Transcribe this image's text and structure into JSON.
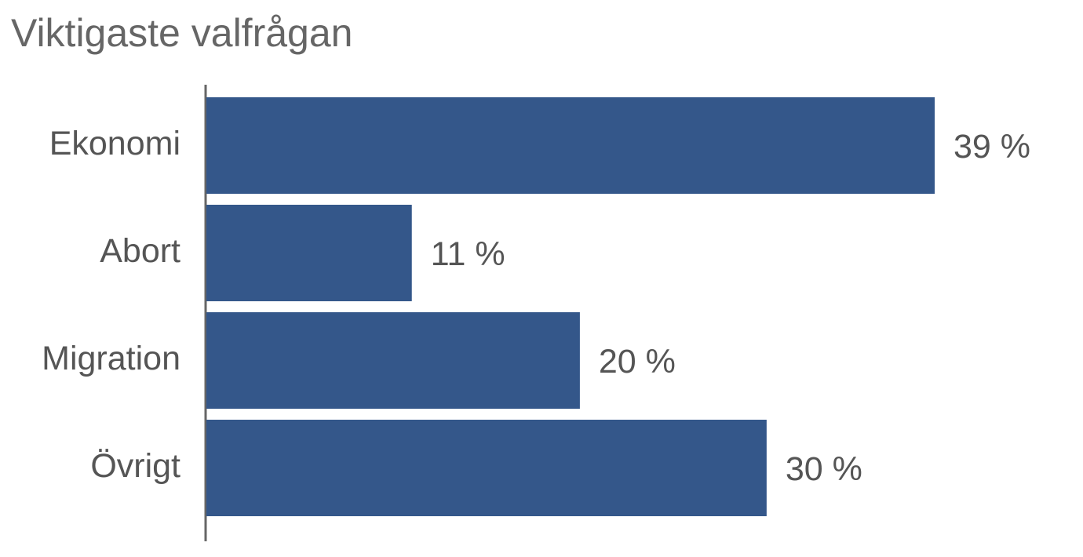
{
  "chart_data": {
    "type": "bar",
    "orientation": "horizontal",
    "title": "Viktigaste valfrågan",
    "categories": [
      "Ekonomi",
      "Abort",
      "Migration",
      "Övrigt"
    ],
    "values": [
      39,
      11,
      20,
      30
    ],
    "value_labels": [
      "39 %",
      "11 %",
      "20 %",
      "30 %"
    ],
    "color": "#34578a"
  }
}
